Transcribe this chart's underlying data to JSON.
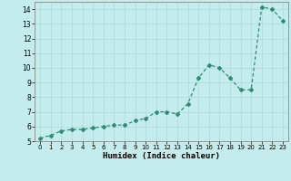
{
  "title": "",
  "xlabel": "Humidex (Indice chaleur)",
  "ylabel": "",
  "x": [
    0,
    1,
    2,
    3,
    4,
    5,
    6,
    7,
    8,
    9,
    10,
    11,
    12,
    13,
    14,
    15,
    16,
    17,
    18,
    19,
    20,
    21,
    22,
    23
  ],
  "y": [
    5.2,
    5.4,
    5.7,
    5.8,
    5.8,
    5.9,
    6.0,
    6.1,
    6.1,
    6.4,
    6.55,
    7.0,
    7.0,
    6.85,
    7.55,
    9.3,
    10.2,
    10.0,
    9.3,
    8.5,
    8.5,
    14.15,
    14.0,
    13.2
  ],
  "line_color": "#2e8b74",
  "bg_color": "#c5ecec",
  "grid_color": "#aad8d8",
  "ylim": [
    5,
    14.5
  ],
  "yticks": [
    5,
    6,
    7,
    8,
    9,
    10,
    11,
    12,
    13,
    14
  ],
  "xlim": [
    -0.5,
    23.5
  ],
  "xticks": [
    0,
    1,
    2,
    3,
    4,
    5,
    6,
    7,
    8,
    9,
    10,
    11,
    12,
    13,
    14,
    15,
    16,
    17,
    18,
    19,
    20,
    21,
    22,
    23
  ]
}
